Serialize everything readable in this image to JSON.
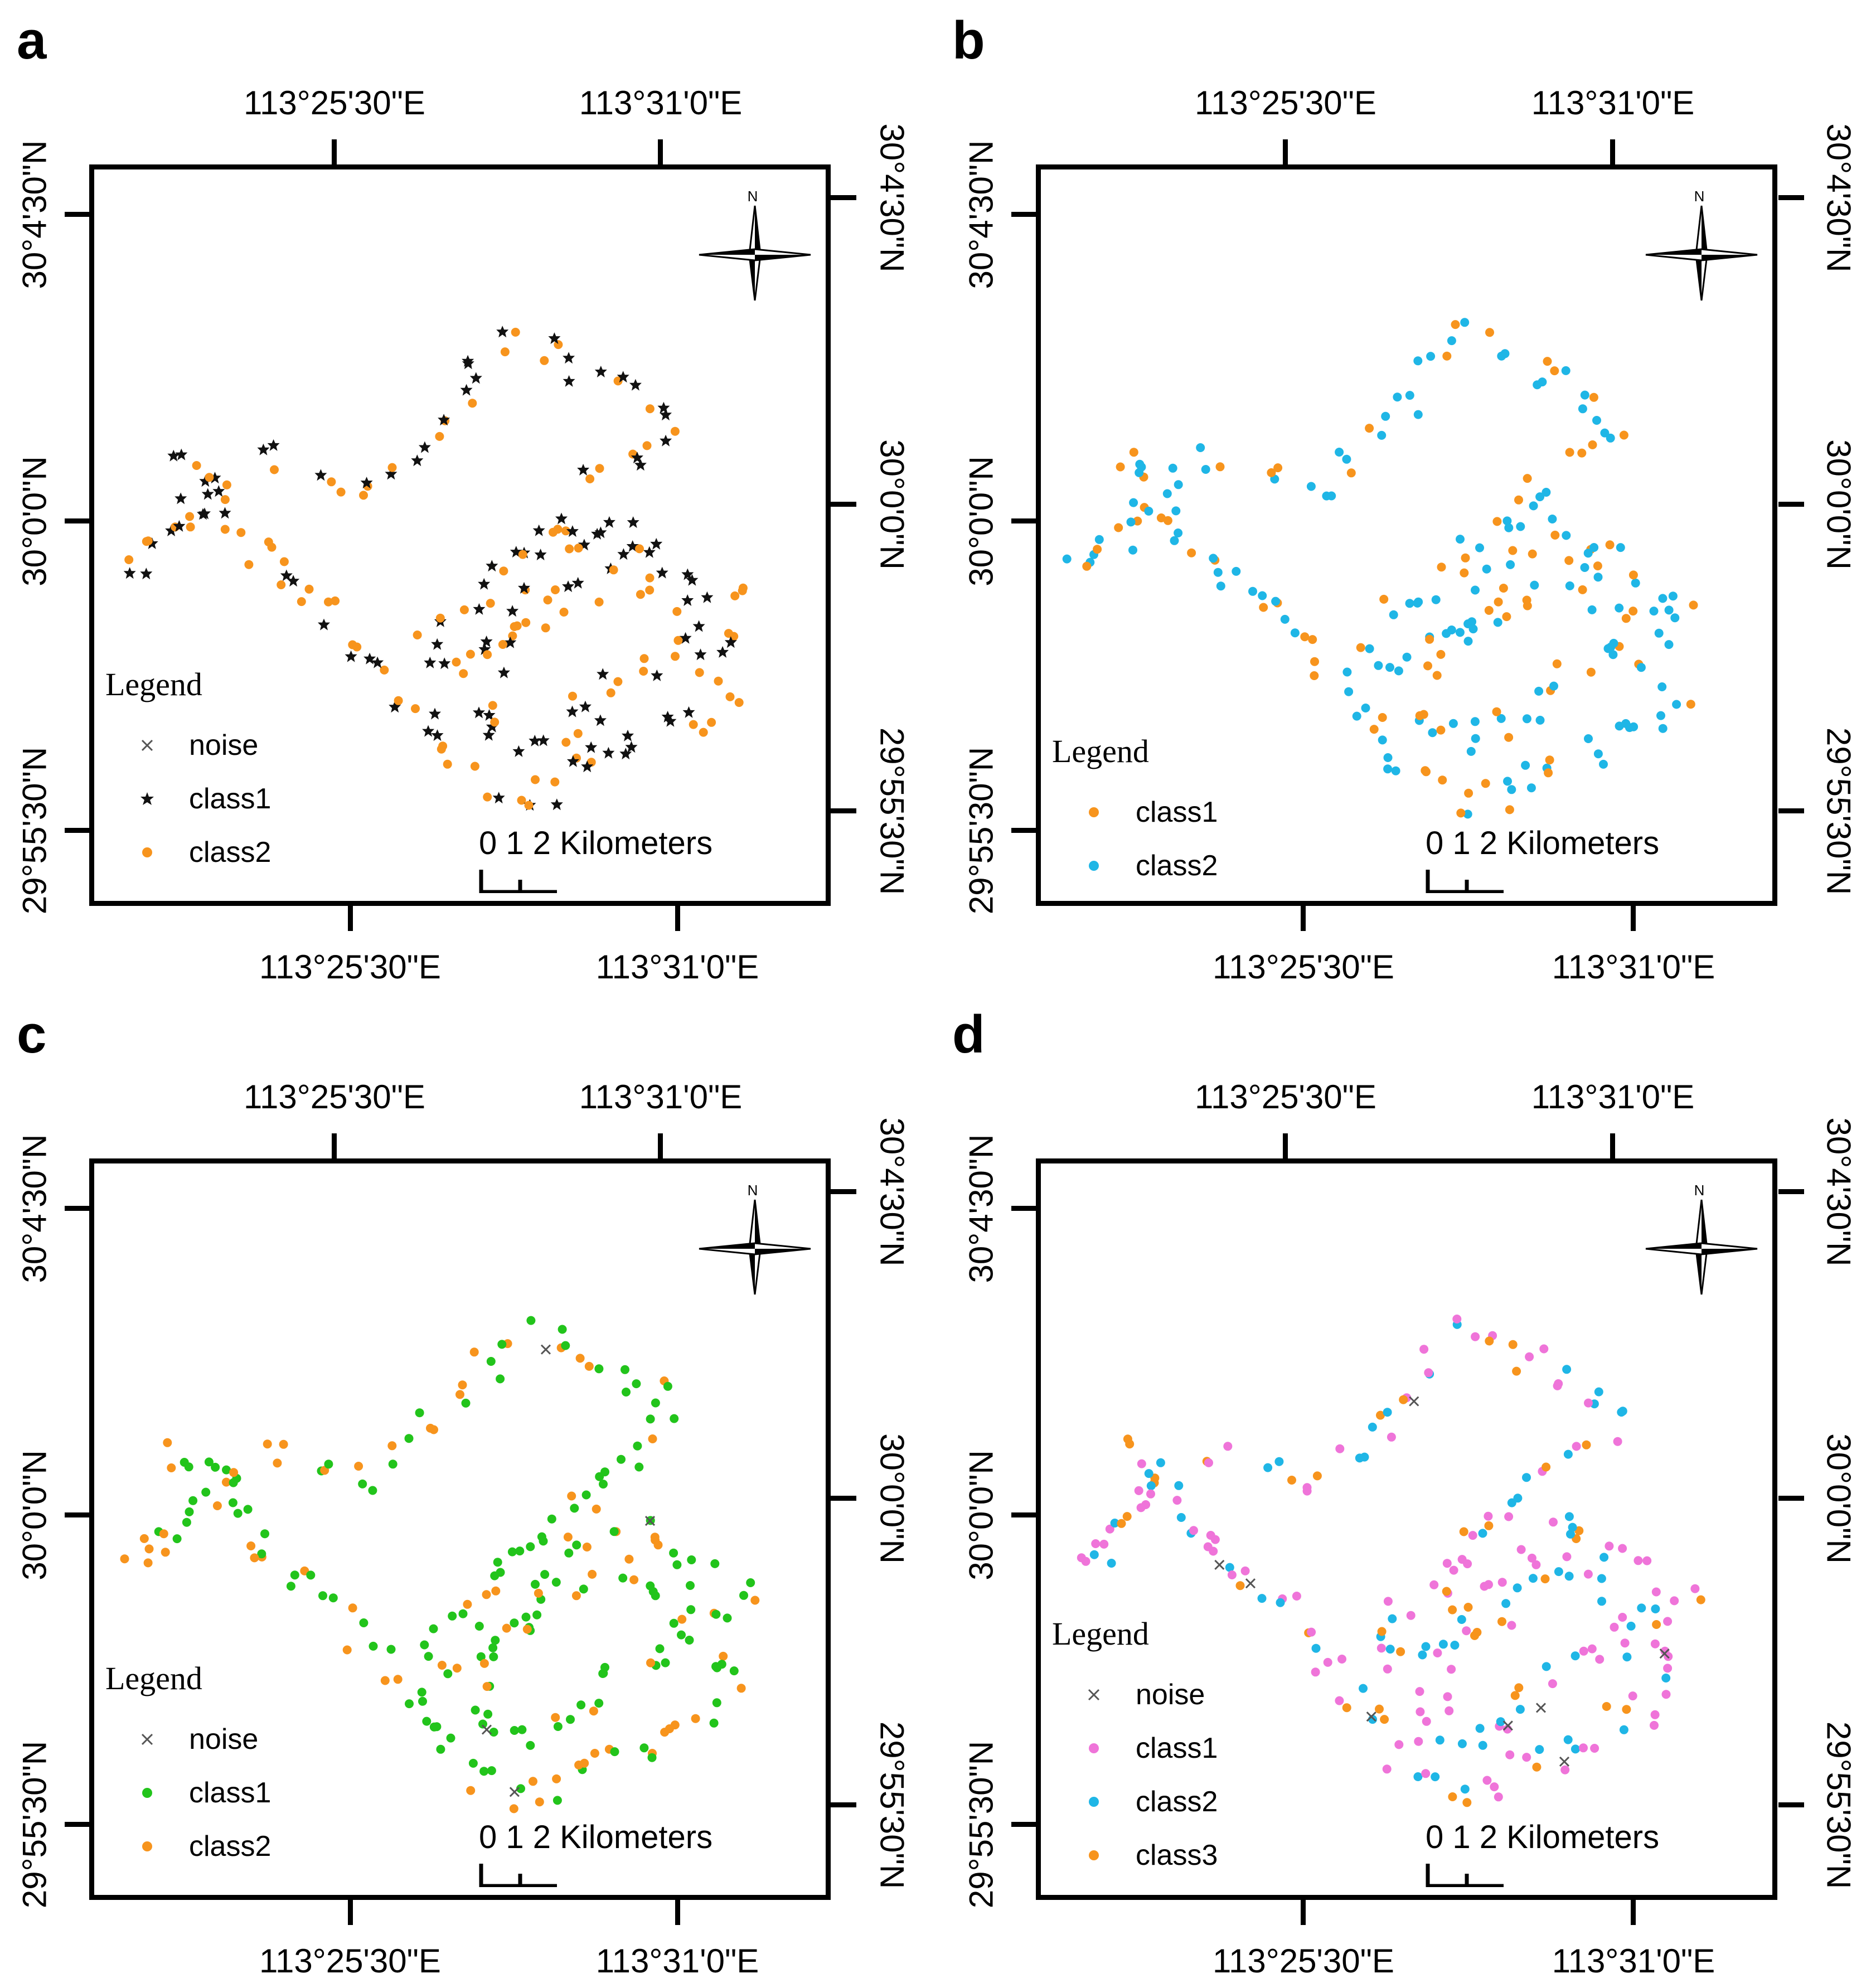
{
  "axes": {
    "top_lon_labels": [
      "113°25'30\"E",
      "113°31'0\"E"
    ],
    "bottom_lon_labels": [
      "113°25'30\"E",
      "113°31'0\"E"
    ],
    "left_lat_labels": [
      "30°4'30\"N",
      "30°0'0\"N",
      "29°55'30\"N"
    ],
    "right_lat_labels": [
      "30°4'30\"N",
      "30°0'0\"N",
      "29°55'30\"N"
    ]
  },
  "scale_bar": {
    "text": "0  1  2  Kilometers",
    "units": "Kilometers",
    "ticks": [
      0,
      1,
      2
    ]
  },
  "north_arrow": {
    "label": "N",
    "icon": "compass-rose-icon"
  },
  "colors": {
    "noise": "#555555",
    "black": "#111111",
    "orange": "#f7941d",
    "cyan": "#1fb6e6",
    "green": "#22c41b",
    "pink": "#ef74d9"
  },
  "panels": [
    {
      "letter": "a",
      "legend_title": "Legend",
      "legend": [
        {
          "label": "noise",
          "symbol": "x",
          "color": "#555555"
        },
        {
          "label": "class1",
          "symbol": "star",
          "color": "#111111"
        },
        {
          "label": "class2",
          "symbol": "dot",
          "color": "#f7941d"
        }
      ]
    },
    {
      "letter": "b",
      "legend_title": "Legend",
      "legend": [
        {
          "label": "class1",
          "symbol": "dot",
          "color": "#f7941d"
        },
        {
          "label": "class2",
          "symbol": "dot",
          "color": "#1fb6e6"
        }
      ]
    },
    {
      "letter": "c",
      "legend_title": "Legend",
      "legend": [
        {
          "label": "noise",
          "symbol": "x",
          "color": "#555555"
        },
        {
          "label": "class1",
          "symbol": "dot",
          "color": "#22c41b"
        },
        {
          "label": "class2",
          "symbol": "dot",
          "color": "#f7941d"
        }
      ]
    },
    {
      "letter": "d",
      "legend_title": "Legend",
      "legend": [
        {
          "label": "noise",
          "symbol": "x",
          "color": "#555555"
        },
        {
          "label": "class1",
          "symbol": "dot",
          "color": "#ef74d9"
        },
        {
          "label": "class2",
          "symbol": "dot",
          "color": "#1fb6e6"
        },
        {
          "label": "class3",
          "symbol": "dot",
          "color": "#f7941d"
        }
      ]
    }
  ]
}
